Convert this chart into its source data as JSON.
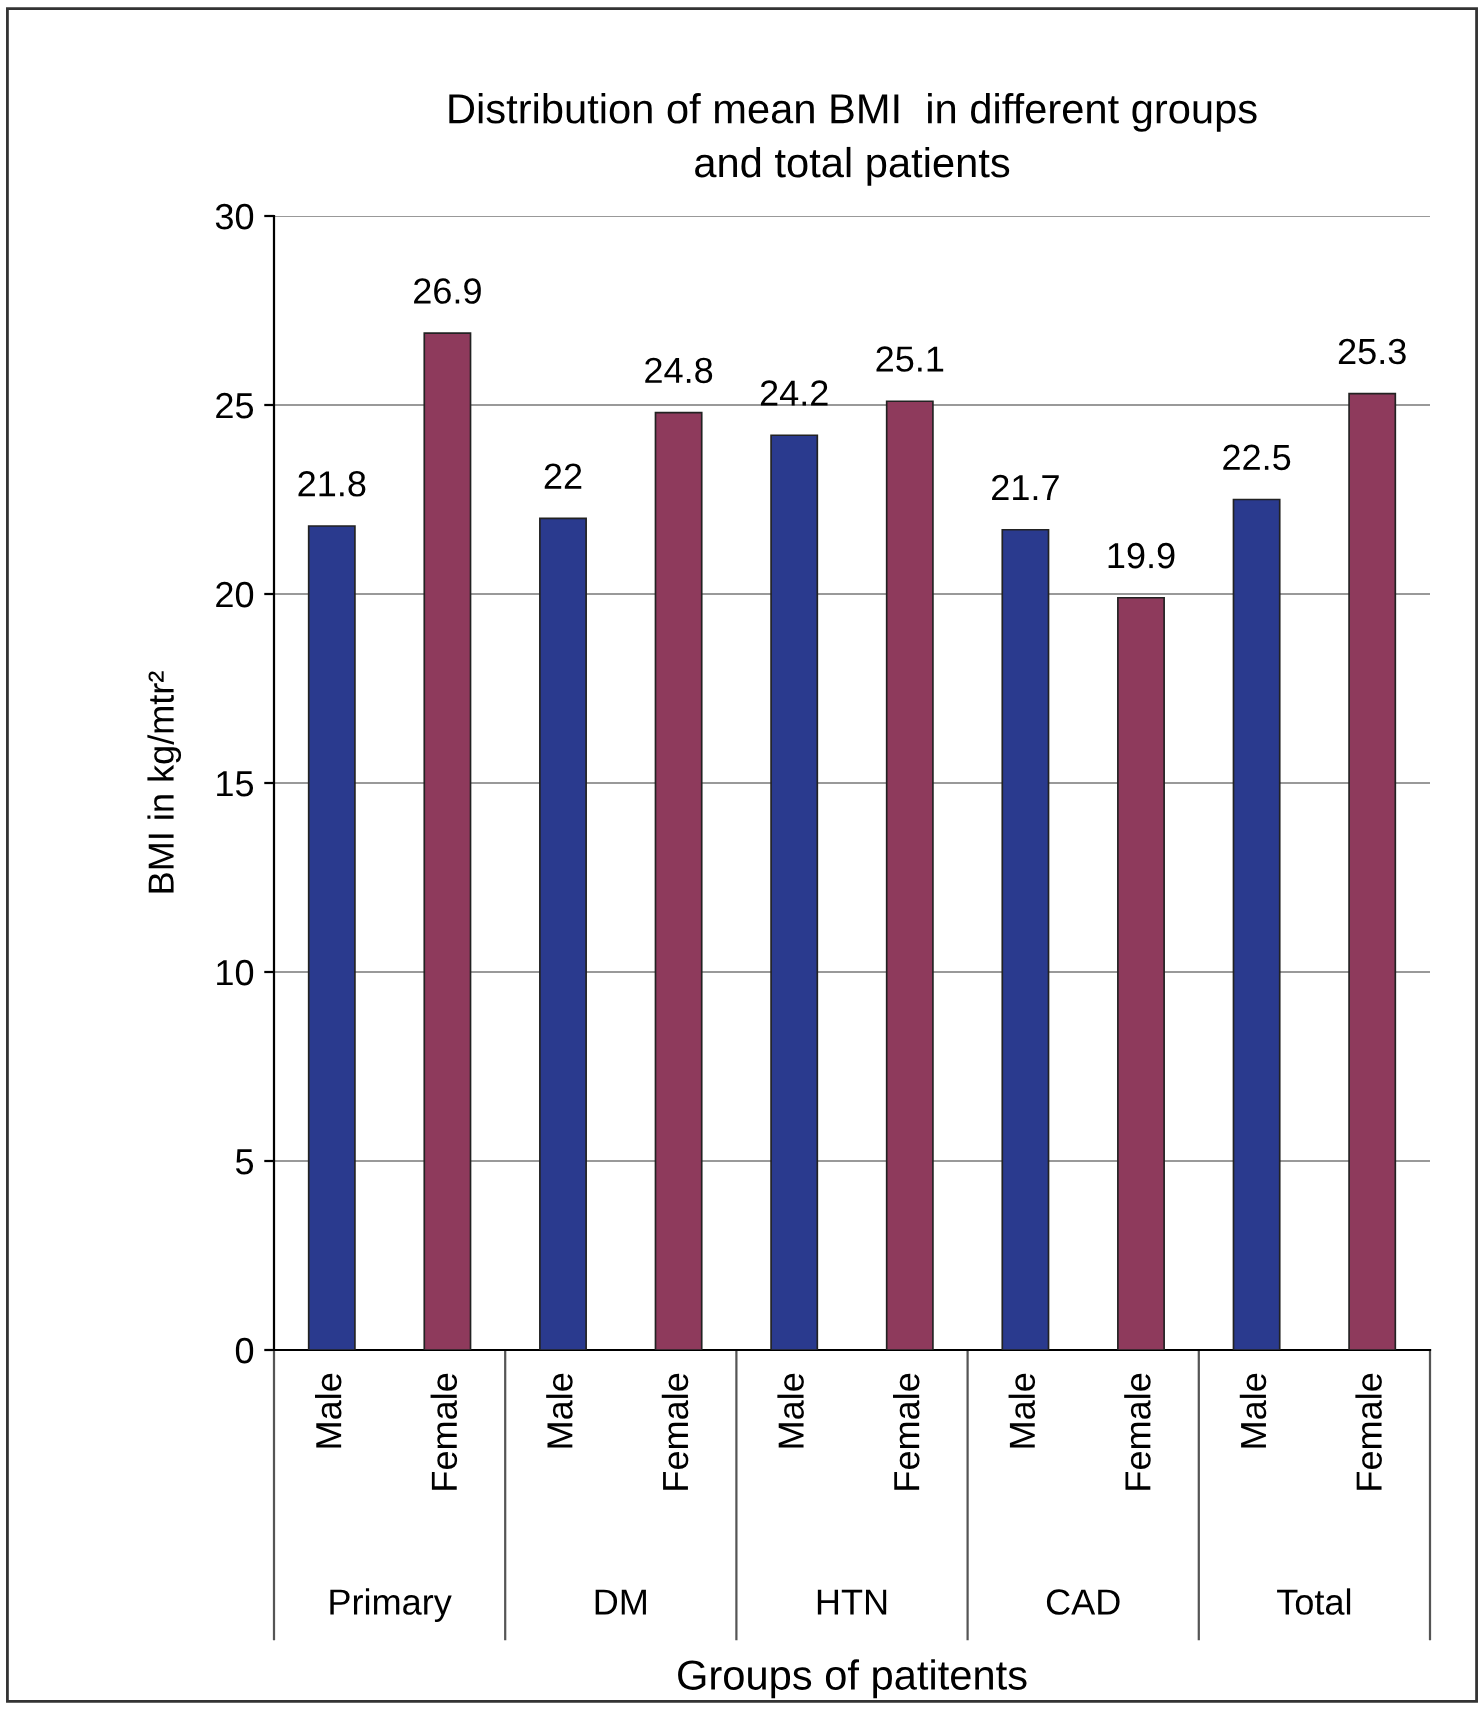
{
  "chart_data": {
    "type": "bar",
    "title": "Distribution of mean BMI  in different groups\nand total patients",
    "xlabel": "Groups of patitents",
    "ylabel": "BMI in kg/mtr²",
    "categories": [
      "Male",
      "Female",
      "Male",
      "Female",
      "Male",
      "Female",
      "Male",
      "Female",
      "Male",
      "Female"
    ],
    "values": [
      21.8,
      26.9,
      22,
      24.8,
      24.2,
      25.1,
      21.7,
      19.9,
      22.5,
      25.3
    ],
    "colors": [
      "#2a3a8e",
      "#8e3a5c",
      "#2a3a8e",
      "#8e3a5c",
      "#2a3a8e",
      "#8e3a5c",
      "#2a3a8e",
      "#8e3a5c",
      "#2a3a8e",
      "#8e3a5c"
    ],
    "annotations": [
      "Primary",
      "DM",
      "HTN",
      "CAD",
      "Total"
    ],
    "ylim": [
      0,
      30
    ],
    "yticks": [
      0,
      5,
      10,
      15,
      20,
      25,
      30
    ],
    "grid": "y",
    "data_labels": true
  }
}
